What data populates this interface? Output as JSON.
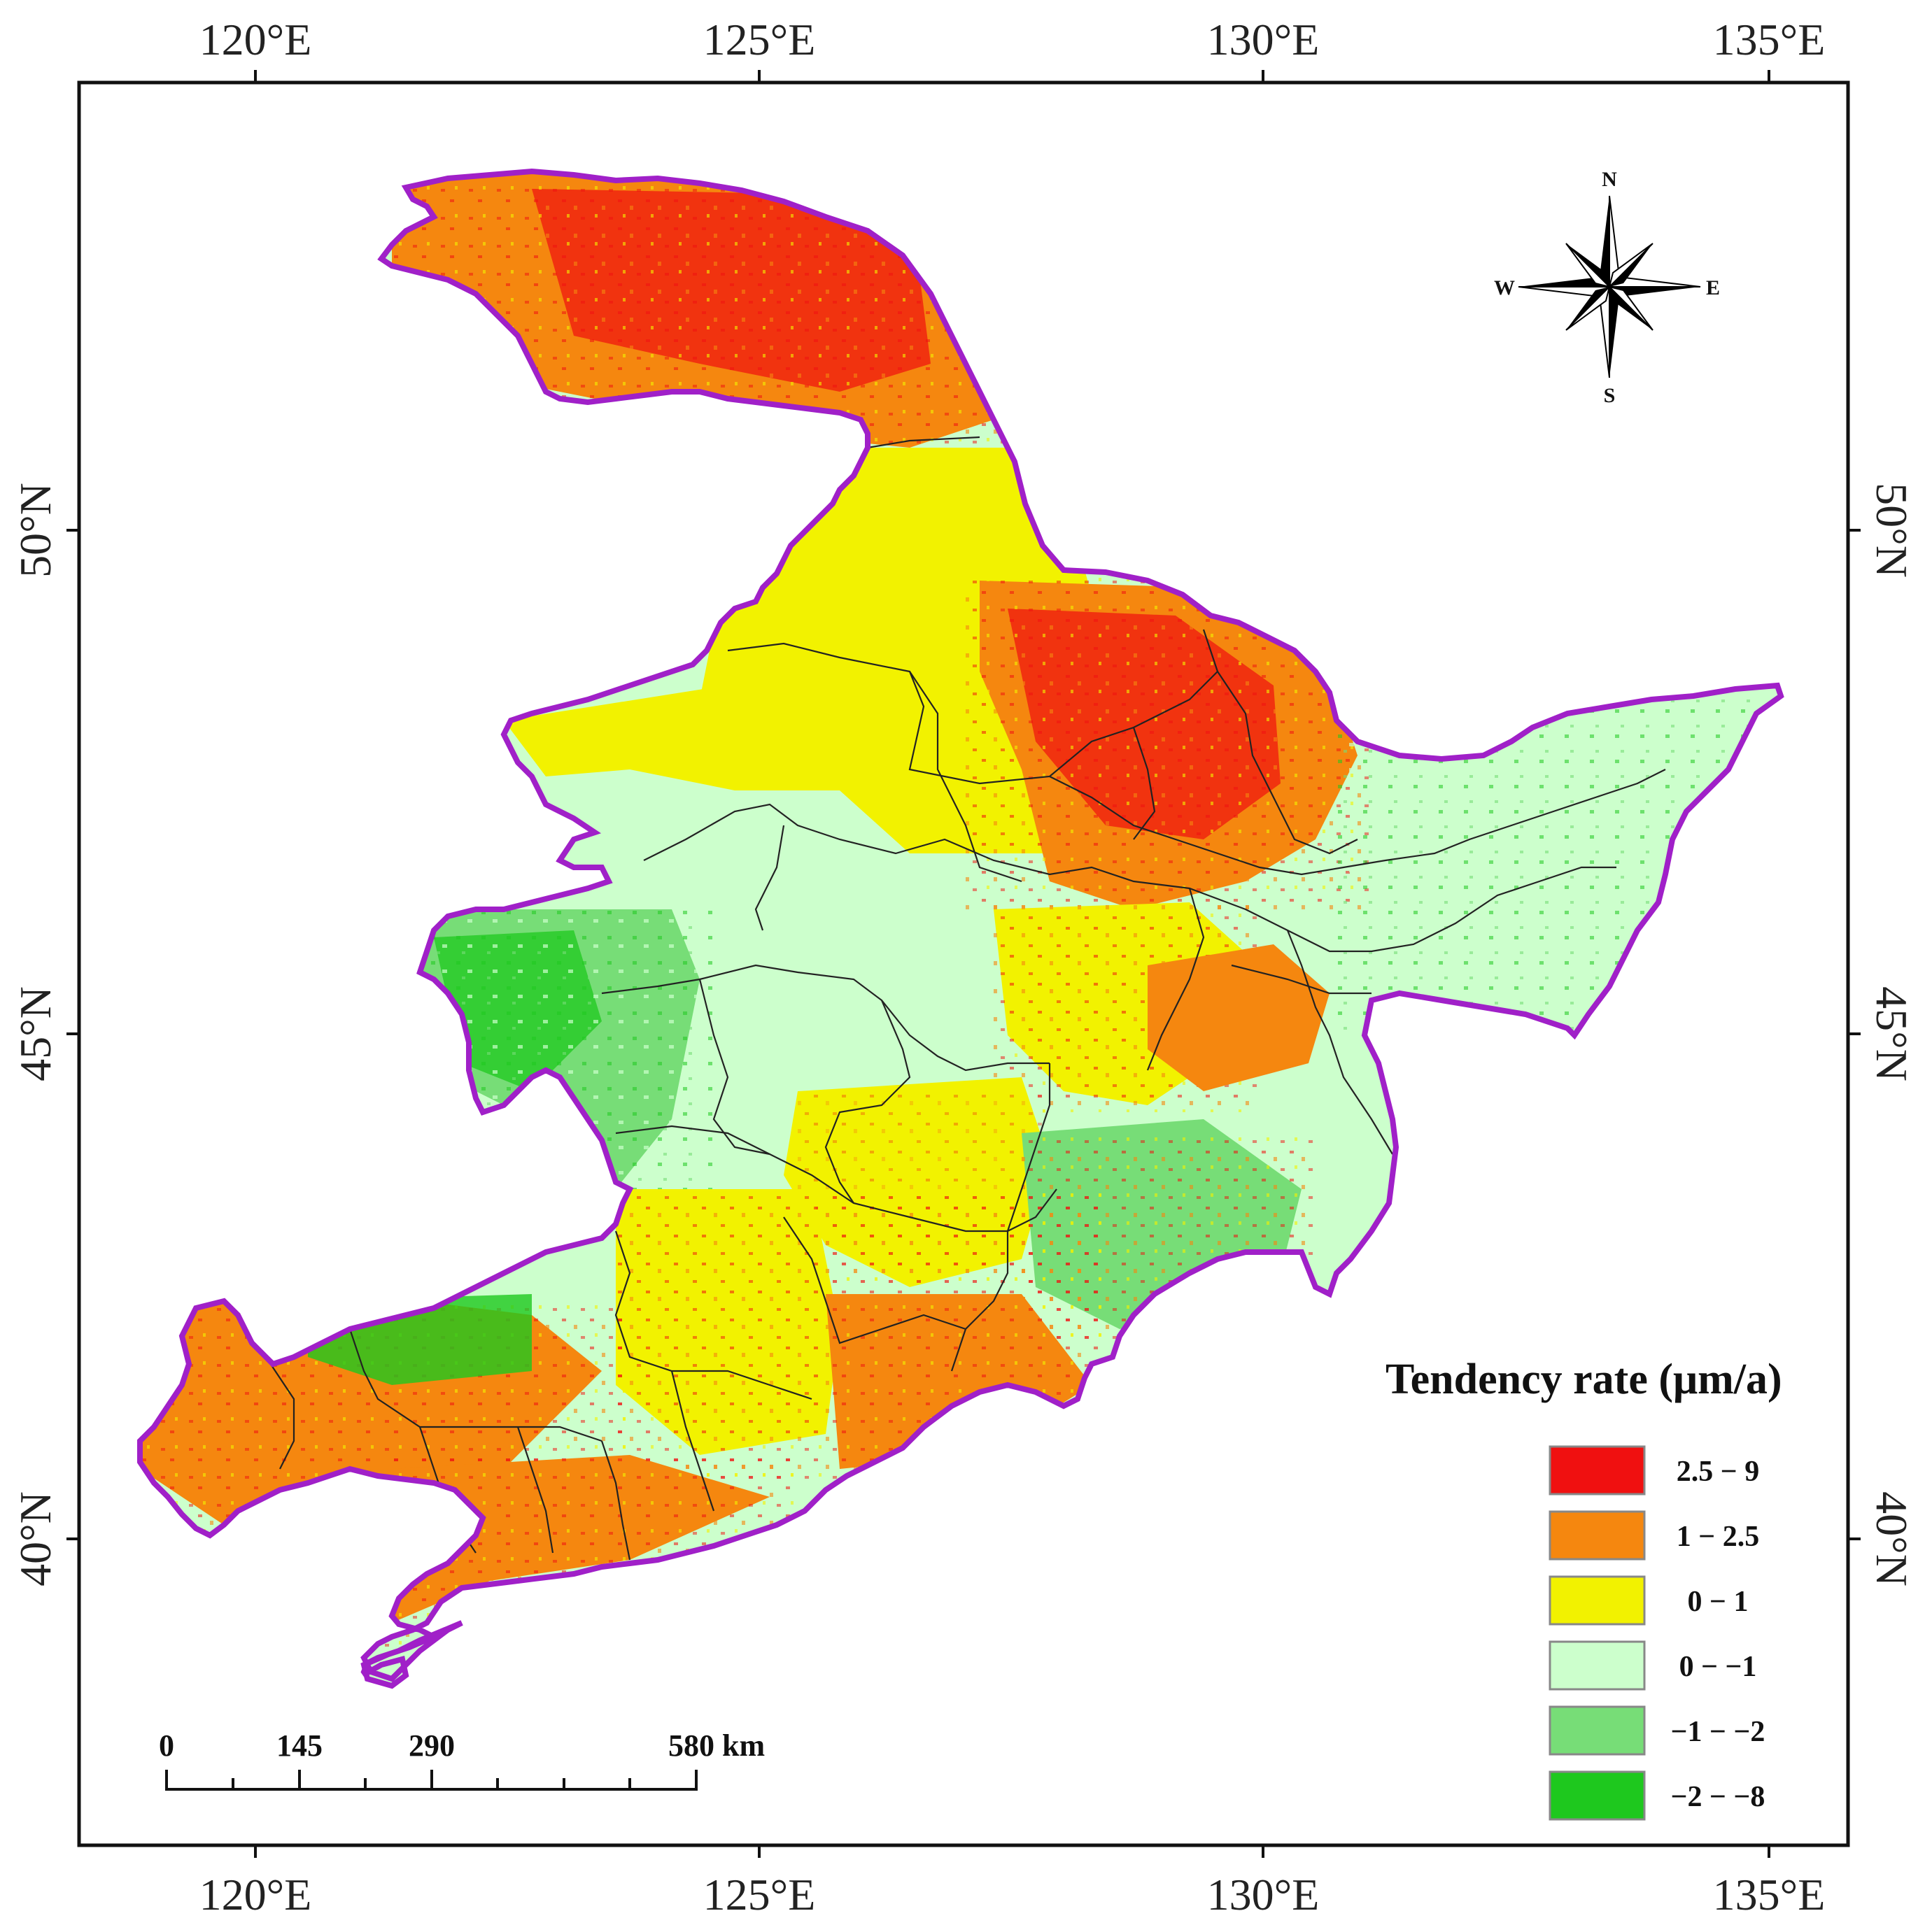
{
  "map": {
    "lon_ticks": [
      "120°E",
      "125°E",
      "130°E",
      "135°E"
    ],
    "lat_ticks": [
      "50°N",
      "45°N",
      "40°N"
    ],
    "compass": {
      "n": "N",
      "s": "S",
      "e": "E",
      "w": "W"
    },
    "legend": {
      "title": "Tendency rate (μm/a)",
      "classes": [
        {
          "label": "2.5 − 9",
          "color": "#f01010"
        },
        {
          "label": "1 − 2.5",
          "color": "#f5870f"
        },
        {
          "label": "0 − 1",
          "color": "#f2f200"
        },
        {
          "label": "0 − −1",
          "color": "#ccffcc"
        },
        {
          "label": "−1 − −2",
          "color": "#77dd77"
        },
        {
          "label": "−2 − −8",
          "color": "#1ec81e"
        }
      ]
    },
    "scale_bar": {
      "labels": [
        "0",
        "145",
        "290",
        "580 km"
      ]
    },
    "boundary_color": "#a020c8"
  }
}
